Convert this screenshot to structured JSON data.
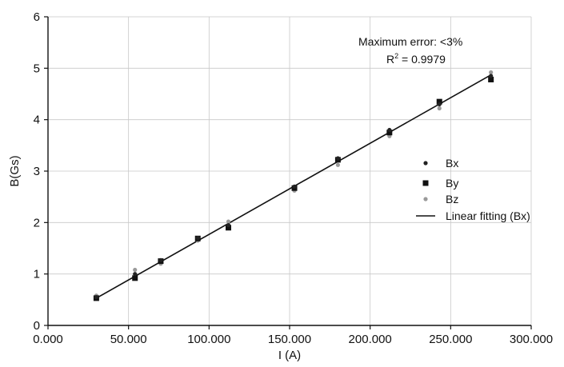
{
  "chart_data": {
    "type": "scatter",
    "xlabel": "I (A)",
    "ylabel": "B(Gs)",
    "xlim": [
      0,
      300
    ],
    "ylim": [
      0,
      6
    ],
    "xticks": [
      0,
      50,
      100,
      150,
      200,
      250,
      300
    ],
    "xtick_labels": [
      "0.000",
      "50.000",
      "100.000",
      "150.000",
      "200.000",
      "250.000",
      "300.000"
    ],
    "yticks": [
      0,
      1,
      2,
      3,
      4,
      5,
      6
    ],
    "ytick_labels": [
      "0",
      "1",
      "2",
      "3",
      "4",
      "5",
      "6"
    ],
    "grid": true,
    "legend_position": "right",
    "series": [
      {
        "name": "Bx",
        "marker": "dot",
        "color": "#222222",
        "x": [
          30,
          54,
          70,
          93,
          112,
          153,
          180,
          212,
          243,
          275
        ],
        "y": [
          0.55,
          1.0,
          1.27,
          1.7,
          1.95,
          2.7,
          3.25,
          3.8,
          4.3,
          4.85
        ]
      },
      {
        "name": "By",
        "marker": "square",
        "color": "#111111",
        "x": [
          30,
          54,
          70,
          93,
          112,
          153,
          180,
          212,
          243,
          275
        ],
        "y": [
          0.53,
          0.92,
          1.25,
          1.69,
          1.9,
          2.67,
          3.22,
          3.75,
          4.35,
          4.78
        ]
      },
      {
        "name": "Bz",
        "marker": "dot",
        "color": "#9a9a9a",
        "x": [
          30,
          54,
          70,
          93,
          112,
          153,
          180,
          212,
          243,
          275
        ],
        "y": [
          0.58,
          1.08,
          1.2,
          1.65,
          2.02,
          2.62,
          3.12,
          3.68,
          4.22,
          4.92
        ]
      }
    ],
    "fit": {
      "name": "Linear fitting (Bx)",
      "x": [
        30,
        275
      ],
      "y": [
        0.53,
        4.87
      ],
      "color": "#111111"
    },
    "annotations": {
      "max_error": "Maximum error: <3%",
      "r2_label": "R",
      "r2_exponent": "2",
      "r2_value": " = 0.9979"
    }
  }
}
